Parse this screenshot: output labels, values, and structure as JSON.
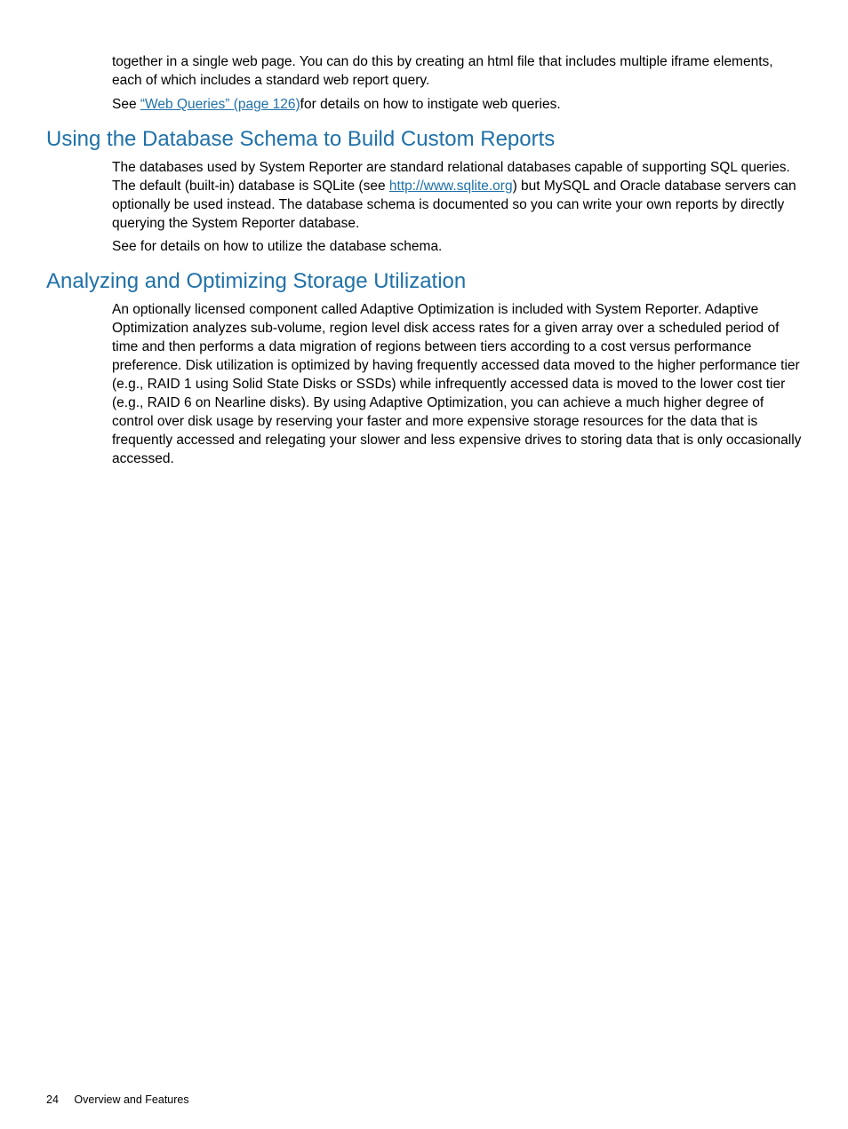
{
  "colors": {
    "heading": "#1f71a8",
    "link": "#1f71a8",
    "body": "#000000",
    "background": "#ffffff"
  },
  "intro": {
    "p1": "together in a single web page. You can do this by creating an html file that includes multiple iframe elements, each of which includes a standard web report query.",
    "p2_a": "See ",
    "p2_link": "“Web Queries” (page 126)",
    "p2_b": "for details on how to instigate web queries."
  },
  "section1": {
    "heading": "Using the Database Schema to Build Custom Reports",
    "p1_a": "The databases used by System Reporter are standard relational databases capable of supporting SQL queries. The default (built-in) database is SQLite (see ",
    "p1_link": "http://www.sqlite.org",
    "p1_b": ") but MySQL and Oracle database servers can optionally be used instead. The database schema is documented so you can write your own reports by directly querying the System Reporter database.",
    "p2": "See for details on how to utilize the database schema."
  },
  "section2": {
    "heading": "Analyzing and Optimizing Storage Utilization",
    "p1": "An optionally licensed component called Adaptive Optimization is included with System Reporter. Adaptive Optimization analyzes sub-volume, region level disk access rates for a given array over a scheduled period of time and then performs a data migration of regions between tiers according to a cost versus performance preference. Disk utilization is optimized by having frequently accessed data moved to the higher performance tier (e.g., RAID 1 using Solid State Disks or SSDs) while infrequently accessed data is moved to the lower cost tier (e.g., RAID 6 on Nearline disks). By using Adaptive Optimization, you can achieve a much higher degree of control over disk usage by reserving your faster and more expensive storage resources for the data that is frequently accessed and relegating your slower and less expensive drives to storing data that is only occasionally accessed."
  },
  "footer": {
    "page_number": "24",
    "chapter": "Overview and Features"
  }
}
